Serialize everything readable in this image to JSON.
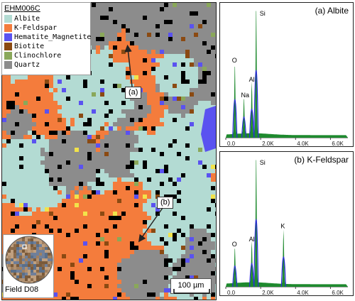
{
  "legend": {
    "title": "EHM006C",
    "items": [
      {
        "label": "Albite",
        "color": "#b3dbd3"
      },
      {
        "label": "K-Feldspar",
        "color": "#f47c3c"
      },
      {
        "label": "Hematite_Magnetite",
        "color": "#5a52f0"
      },
      {
        "label": "Biotite",
        "color": "#8b4a12"
      },
      {
        "label": "Clinochlore",
        "color": "#8aa85a"
      },
      {
        "label": "Quartz",
        "color": "#8c8c8c"
      }
    ]
  },
  "callouts": {
    "a": "(a)",
    "b": "(b)"
  },
  "inset": {
    "label": "Field D08"
  },
  "scale_bar": {
    "label": "100 µm"
  },
  "spectra": [
    {
      "title": "(a) Albite",
      "x_ticks": [
        "0.0",
        "2.0K",
        "4.0K",
        "6.0K"
      ],
      "peaks": [
        {
          "label": "O",
          "x": 0.52,
          "height": 0.55
        },
        {
          "label": "Na",
          "x": 1.04,
          "height": 0.28
        },
        {
          "label": "Al",
          "x": 1.49,
          "height": 0.4
        },
        {
          "label": "Si",
          "x": 1.74,
          "height": 1.0
        }
      ]
    },
    {
      "title": "(b) K-Feldspar",
      "x_ticks": [
        "0.0",
        "2.0K",
        "4.0K",
        "6.0K"
      ],
      "peaks": [
        {
          "label": "O",
          "x": 0.52,
          "height": 0.28
        },
        {
          "label": "Al",
          "x": 1.49,
          "height": 0.32
        },
        {
          "label": "Si",
          "x": 1.74,
          "height": 1.0
        },
        {
          "label": "K",
          "x": 3.31,
          "height": 0.42
        }
      ]
    }
  ]
}
